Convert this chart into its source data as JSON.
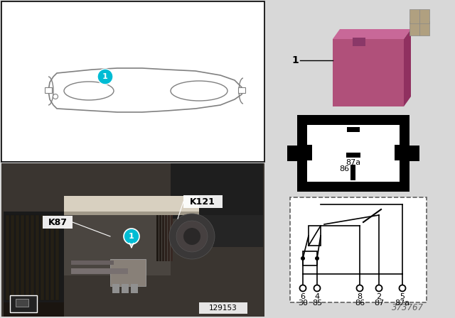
{
  "bg_color": "#d8d8d8",
  "white": "#ffffff",
  "black": "#000000",
  "teal": "#00bcd4",
  "relay_pink": "#b5527a",
  "relay_pink_light": "#cc6699",
  "relay_pink_top": "#c06090",
  "pin_silver": "#b0a090",
  "dark_gray": "#555555",
  "photo_bg": "#2a2a2a",
  "diagram_number": "373767",
  "photo_label": "129153",
  "label1": "1",
  "labelK87": "K87",
  "labelK121": "K121"
}
